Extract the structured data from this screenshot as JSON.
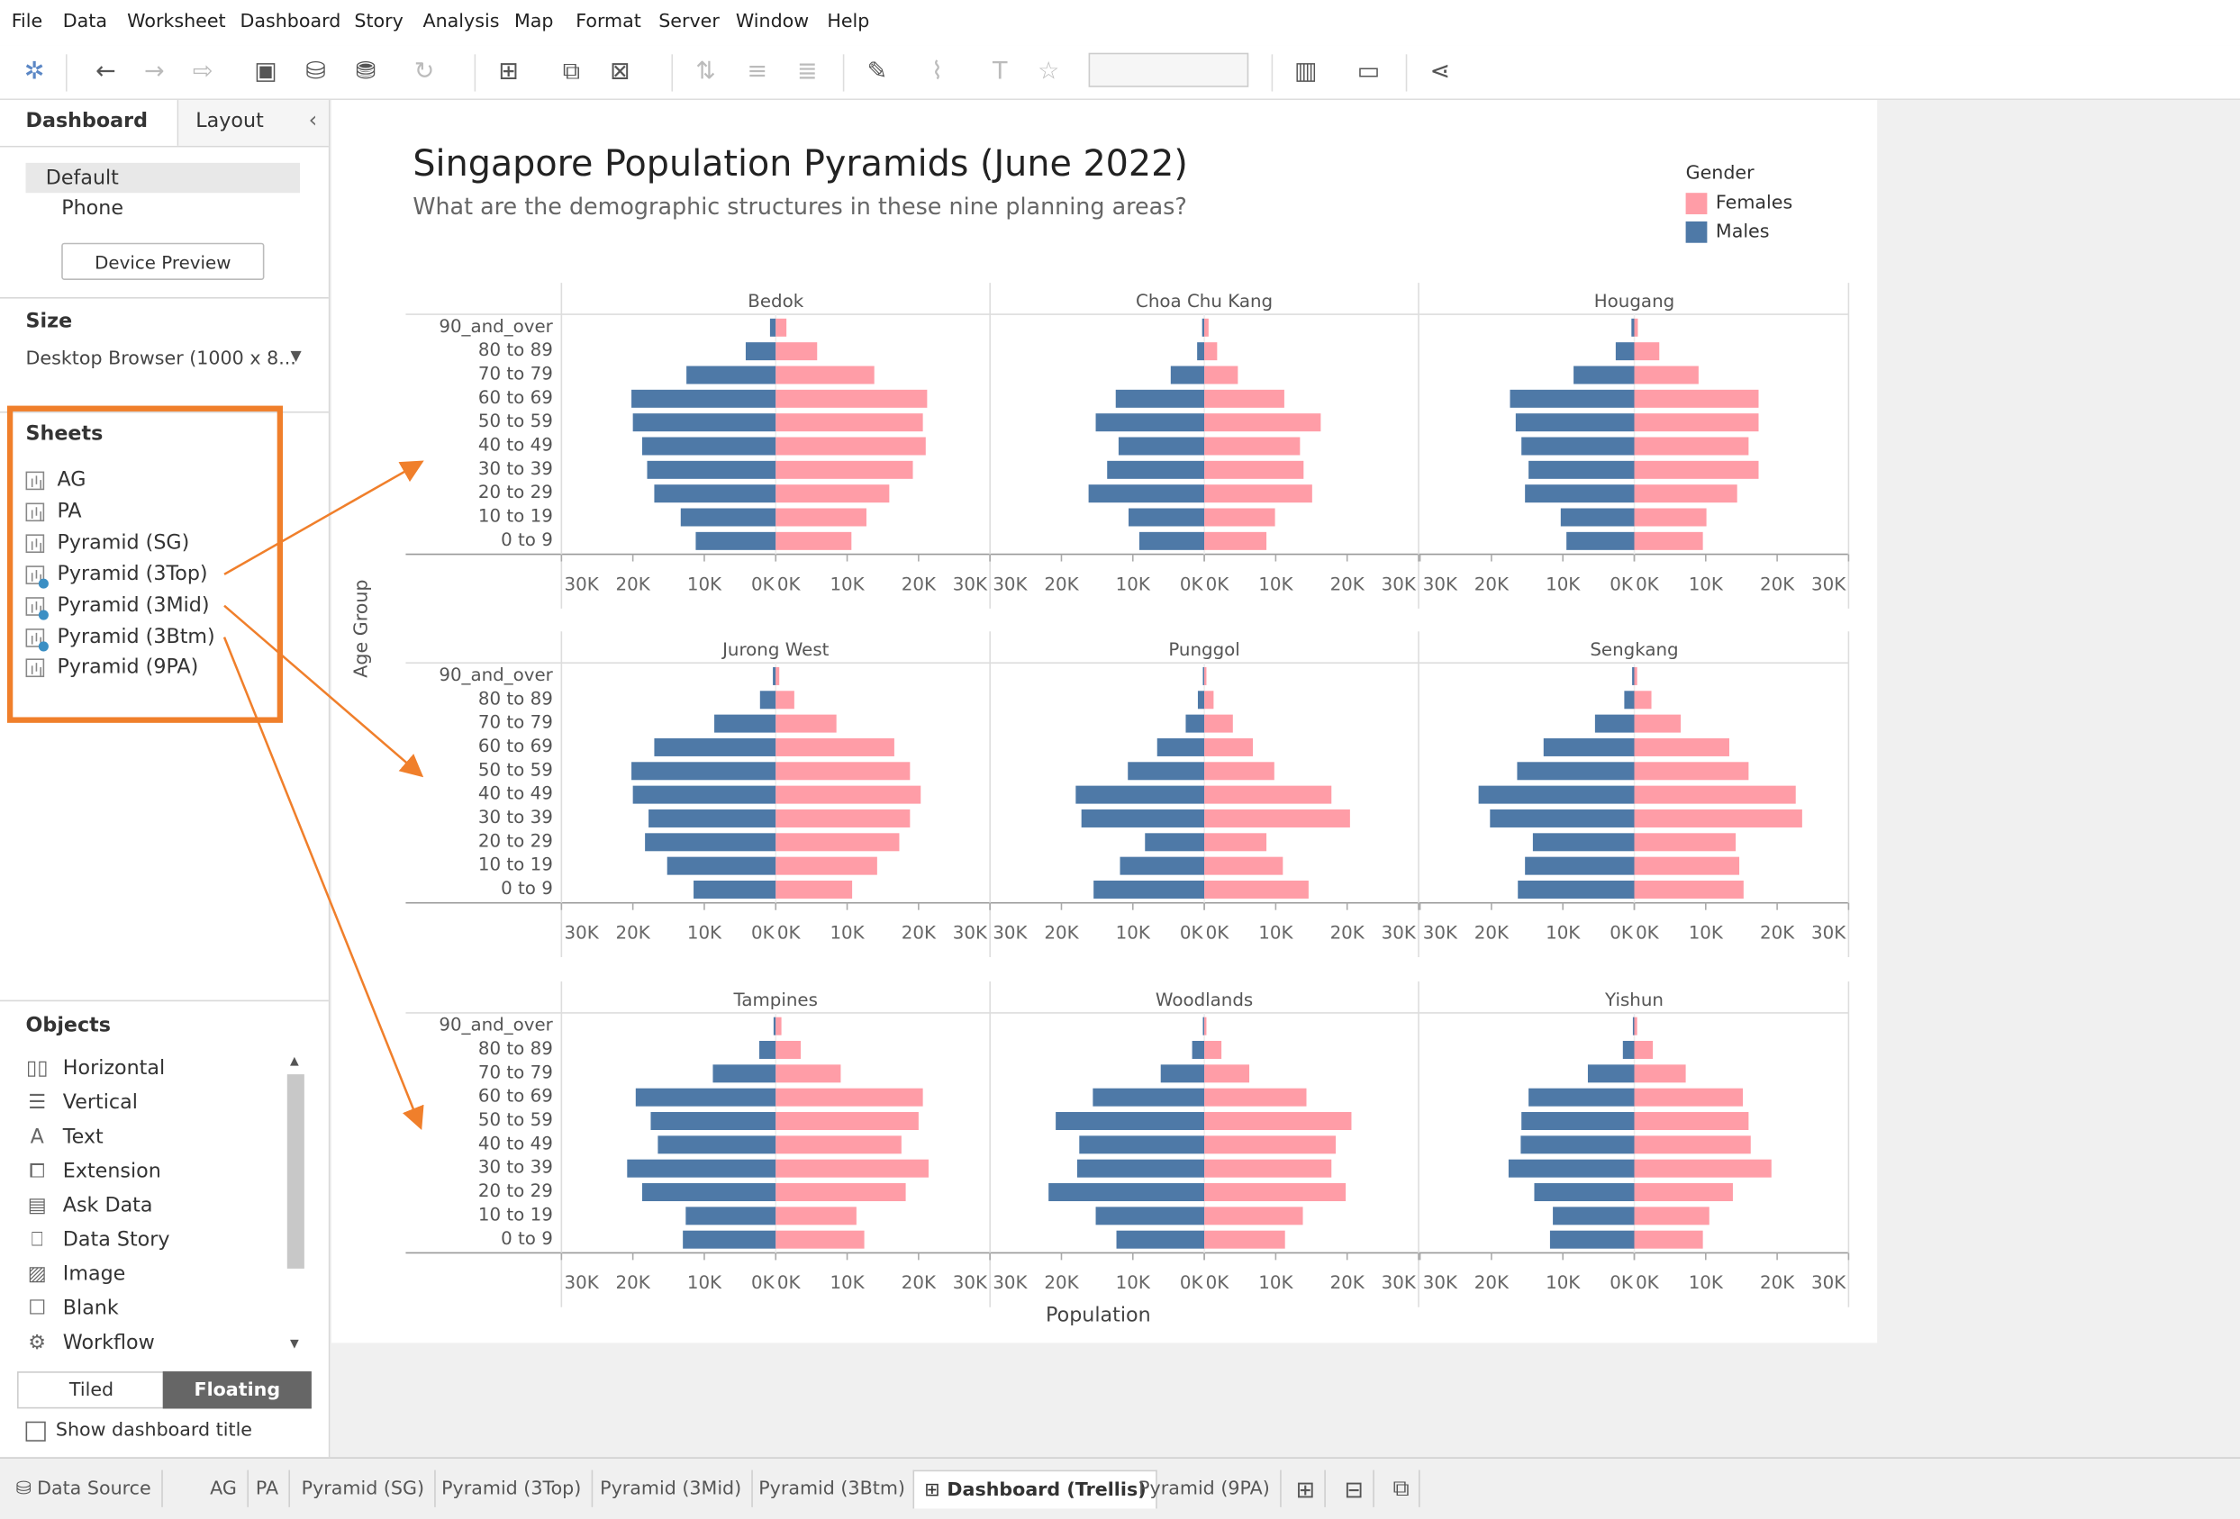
{
  "menu": [
    "File",
    "Data",
    "Worksheet",
    "Dashboard",
    "Story",
    "Analysis",
    "Map",
    "Format",
    "Server",
    "Window",
    "Help"
  ],
  "toolbar_icons": [
    "tableau-logo-icon",
    "undo-icon",
    "redo-icon",
    "redo-dropdown-icon",
    "save-icon",
    "new-data-source-icon",
    "pause-updates-icon",
    "refresh-icon",
    "new-worksheet-icon",
    "duplicate-sheet-icon",
    "clear-sheet-icon",
    "swap-icon",
    "sort-ascending-icon",
    "sort-descending-icon",
    "highlight-icon",
    "group-icon",
    "label-icon",
    "fix-axes-icon",
    "show-me-icon",
    "presentation-icon",
    "share-icon"
  ],
  "side": {
    "tabs": [
      "Dashboard",
      "Layout"
    ],
    "collapse_icon": "chevron-left-icon",
    "devices": [
      "Default",
      "Phone"
    ],
    "device_preview": "Device Preview",
    "size_title": "Size",
    "size_value": "Desktop Browser (1000 x 8...",
    "sheets_title": "Sheets",
    "sheets": [
      "AG",
      "PA",
      "Pyramid (SG)",
      "Pyramid (3Top)",
      "Pyramid (3Mid)",
      "Pyramid (3Btm)",
      "Pyramid (9PA)"
    ],
    "objects_title": "Objects",
    "objects": [
      "Horizontal",
      "Vertical",
      "Text",
      "Extension",
      "Ask Data",
      "Data Story",
      "Image",
      "Blank",
      "Workflow"
    ],
    "layout_toggle": [
      "Tiled",
      "Floating"
    ],
    "show_title": "Show dashboard title"
  },
  "dashboard": {
    "title": "Singapore Population Pyramids (June 2022)",
    "subtitle": "What are the demographic structures in these nine planning areas?",
    "legend_title": "Gender",
    "legend": [
      {
        "label": "Females",
        "color": "#ff9da7"
      },
      {
        "label": "Males",
        "color": "#4e79a7"
      }
    ],
    "y_axis_title": "Age Group",
    "x_axis_title": "Population",
    "left_ticks": [
      "30K",
      "20K",
      "10K",
      "0K"
    ],
    "right_ticks": [
      "0K",
      "10K",
      "20K",
      "30K"
    ]
  },
  "chart_data": {
    "type": "bar",
    "title": "Singapore Population Pyramids (June 2022)",
    "xlabel": "Population",
    "ylabel": "Age Group",
    "xlim": [
      0,
      30000
    ],
    "categories": [
      "90_and_over",
      "80 to 89",
      "70 to 79",
      "60 to 69",
      "50 to 59",
      "40 to 49",
      "30 to 39",
      "20 to 29",
      "10 to 19",
      "0 to 9"
    ],
    "panels": [
      {
        "name": "Bedok",
        "males": [
          800,
          4200,
          12500,
          20200,
          20000,
          18700,
          18000,
          17000,
          13300,
          11200
        ],
        "females": [
          1500,
          5800,
          13800,
          21200,
          20600,
          21000,
          19200,
          15900,
          12700,
          10600
        ]
      },
      {
        "name": "Choa Chu Kang",
        "males": [
          300,
          1000,
          4700,
          12400,
          15200,
          12000,
          13600,
          16200,
          10600,
          9100
        ],
        "females": [
          600,
          1800,
          4700,
          11200,
          16300,
          13400,
          13900,
          15100,
          9900,
          8700
        ]
      },
      {
        "name": "Hougang",
        "males": [
          400,
          2600,
          8500,
          17400,
          16600,
          15800,
          14800,
          15300,
          10300,
          9500
        ],
        "females": [
          500,
          3500,
          9000,
          17400,
          17400,
          16000,
          17400,
          14400,
          10100,
          9600
        ]
      },
      {
        "name": "Jurong West",
        "males": [
          400,
          2200,
          8600,
          17000,
          20200,
          20000,
          17800,
          18300,
          15200,
          11500
        ],
        "females": [
          500,
          2600,
          8500,
          16600,
          18800,
          20300,
          18800,
          17300,
          14200,
          10700
        ]
      },
      {
        "name": "Punggol",
        "males": [
          200,
          900,
          2600,
          6600,
          10700,
          18000,
          17200,
          8300,
          11800,
          15500
        ],
        "females": [
          300,
          1300,
          4000,
          6800,
          9800,
          17800,
          20400,
          8700,
          11000,
          14600
        ]
      },
      {
        "name": "Sengkang",
        "males": [
          300,
          1400,
          5500,
          12700,
          16400,
          21800,
          20200,
          14200,
          15300,
          16300
        ],
        "females": [
          400,
          2400,
          6500,
          13300,
          16000,
          22600,
          23500,
          14200,
          14700,
          15300
        ]
      },
      {
        "name": "Tampines",
        "males": [
          300,
          2300,
          8800,
          19600,
          17500,
          16500,
          20800,
          18700,
          12600,
          13000
        ],
        "females": [
          800,
          3500,
          9100,
          20600,
          20000,
          17600,
          21400,
          18200,
          11300,
          12400
        ]
      },
      {
        "name": "Woodlands",
        "males": [
          200,
          1700,
          6100,
          15600,
          20800,
          17500,
          17800,
          21800,
          15200,
          12300
        ],
        "females": [
          300,
          2400,
          6300,
          14300,
          20600,
          18400,
          17800,
          19800,
          13800,
          11300
        ]
      },
      {
        "name": "Yishun",
        "males": [
          200,
          1600,
          6500,
          14800,
          15800,
          15900,
          17600,
          14000,
          11400,
          11800
        ],
        "females": [
          400,
          2600,
          7200,
          15200,
          16000,
          16300,
          19200,
          13800,
          10500,
          9600
        ]
      }
    ],
    "series": [
      {
        "name": "Females",
        "color": "#ff9da7"
      },
      {
        "name": "Males",
        "color": "#4e79a7"
      }
    ]
  },
  "bottom_tabs": [
    "Data Source",
    "AG",
    "PA",
    "Pyramid (SG)",
    "Pyramid (3Top)",
    "Pyramid (3Mid)",
    "Pyramid (3Btm)",
    "Dashboard (Trellis)",
    "Pyramid (9PA)"
  ],
  "bottom_icons": [
    "new-worksheet-icon",
    "new-dashboard-icon",
    "new-story-icon"
  ],
  "colors": {
    "accent_orange": "#f07f2b",
    "males": "#4e79a7",
    "females": "#ff9da7"
  }
}
